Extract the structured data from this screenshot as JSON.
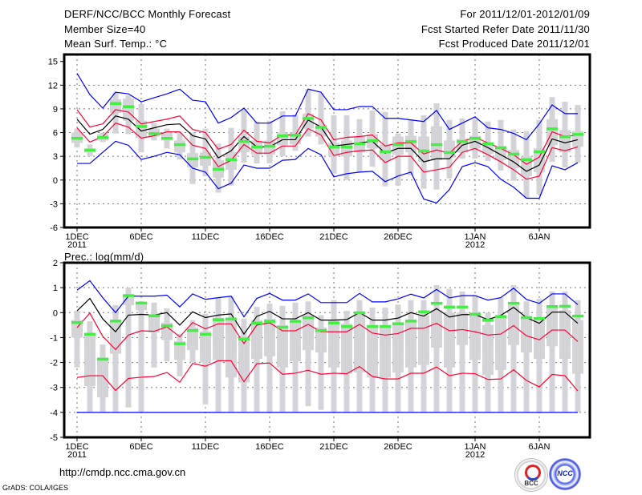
{
  "header": {
    "title": "DERF/NCC/BCC Monthly Forecast",
    "member_size": "Member Size=40",
    "variable": "Mean Surf. Temp.: °C",
    "period": "For 2011/12/01-2012/01/09",
    "started": "Fcst Started Refer Date 2011/11/30",
    "produced": "Fcst Produced Date 2011/12/01"
  },
  "footer": {
    "url": "http://cmdp.ncc.cma.gov.cn",
    "credit": "GrADS: COLA/IGES",
    "logos": [
      "BCC",
      "NCC"
    ]
  },
  "colors": {
    "envelope": "#0000ff",
    "spread": "#ff0033",
    "mean": "#000000",
    "obs": "#44ee44",
    "box": "#d4d4d8"
  },
  "chart_data": [
    {
      "type": "line",
      "title": "Mean Surf. Temp.: °C",
      "days": 40,
      "ylim": [
        -6,
        15
      ],
      "yticks": [
        "15",
        "12",
        "9",
        "6",
        "3",
        "0",
        "-3",
        "-6"
      ],
      "ytick_values": [
        15,
        12,
        9,
        6,
        3,
        0,
        -3,
        -6
      ],
      "xticks": [
        {
          "day": 1,
          "label": "1DEC",
          "sub": "2011"
        },
        {
          "day": 6,
          "label": "6DEC"
        },
        {
          "day": 11,
          "label": "11DEC"
        },
        {
          "day": 16,
          "label": "16DEC"
        },
        {
          "day": 21,
          "label": "21DEC"
        },
        {
          "day": 26,
          "label": "26DEC"
        },
        {
          "day": 32,
          "label": "1JAN",
          "sub": "2012"
        },
        {
          "day": 37,
          "label": "6JAN"
        }
      ],
      "series": [
        {
          "name": "upper-envelope",
          "color": "#0000ff",
          "values": [
            13.5,
            10.8,
            9.1,
            11.1,
            10.9,
            9.9,
            10.4,
            10.9,
            11.5,
            10.1,
            9.9,
            7.2,
            7.9,
            9.1,
            7.2,
            7.2,
            8.1,
            8.1,
            11.5,
            11.1,
            8.9,
            8.9,
            9.3,
            9.3,
            7.8,
            7.8,
            7.6,
            7.4,
            8.8,
            6.4,
            7.2,
            8.0,
            6.6,
            6.4,
            5.9,
            5.1,
            7.1,
            9.5,
            8.4,
            8.4
          ]
        },
        {
          "name": "upper-spread",
          "color": "#ff0033",
          "values": [
            8.9,
            6.7,
            7.1,
            8.9,
            8.6,
            7.1,
            7.4,
            7.7,
            8.1,
            6.4,
            6.0,
            3.9,
            4.5,
            6.3,
            4.9,
            4.7,
            5.7,
            5.7,
            8.4,
            7.6,
            5.1,
            5.4,
            5.5,
            5.7,
            4.3,
            4.7,
            4.7,
            3.3,
            3.8,
            3.4,
            4.9,
            5.4,
            4.7,
            4.0,
            3.2,
            2.0,
            2.9,
            6.1,
            5.5,
            5.7
          ]
        },
        {
          "name": "ensemble-mean",
          "color": "#000000",
          "values": [
            7.7,
            5.8,
            6.4,
            8.1,
            7.7,
            6.2,
            6.6,
            7.0,
            7.1,
            5.6,
            5.2,
            2.8,
            3.7,
            5.5,
            4.2,
            4.2,
            5.1,
            5.1,
            7.6,
            6.7,
            4.3,
            4.5,
            4.7,
            4.9,
            3.4,
            4.0,
            4.0,
            2.3,
            2.7,
            2.7,
            4.4,
            4.9,
            4.1,
            3.2,
            2.3,
            1.1,
            1.9,
            5.2,
            4.7,
            5.1
          ]
        },
        {
          "name": "lower-spread",
          "color": "#ff0033",
          "values": [
            6.6,
            4.8,
            5.5,
            7.2,
            6.7,
            5.3,
            5.6,
            6.1,
            6.1,
            4.4,
            4.0,
            1.7,
            2.5,
            4.5,
            3.4,
            3.4,
            4.3,
            4.3,
            6.5,
            5.7,
            3.1,
            3.5,
            3.7,
            3.8,
            2.2,
            3.0,
            3.0,
            1.0,
            1.3,
            1.6,
            3.5,
            4.0,
            3.2,
            2.3,
            1.3,
            0.1,
            0.5,
            4.1,
            3.7,
            4.2
          ]
        },
        {
          "name": "lower-envelope",
          "color": "#0000ff",
          "values": [
            2.1,
            2.1,
            3.5,
            4.9,
            4.4,
            2.6,
            3.0,
            3.5,
            3.2,
            1.5,
            1.0,
            -1.1,
            -0.4,
            1.9,
            1.5,
            1.5,
            2.5,
            2.6,
            4.0,
            3.2,
            0.4,
            0.8,
            1.0,
            1.1,
            -0.2,
            0.5,
            1.0,
            -2.4,
            -2.9,
            -1.2,
            1.7,
            2.2,
            1.7,
            0.1,
            -0.9,
            -2.3,
            -2.3,
            1.8,
            1.3,
            2.2
          ]
        }
      ],
      "observed": [
        5.3,
        3.8,
        5.4,
        9.7,
        9.3,
        6.8,
        5.9,
        5.3,
        4.5,
        2.7,
        2.9,
        1.4,
        2.6,
        4.9,
        4.2,
        4.3,
        5.6,
        5.7,
        7.8,
        6.7,
        4.2,
        4.2,
        4.6,
        5.0,
        3.6,
        4.5,
        4.9,
        3.7,
        4.5,
        3.5,
        4.9,
        5.3,
        4.6,
        4.1,
        3.3,
        2.6,
        3.6,
        6.5,
        5.5,
        5.8
      ],
      "boxes": {
        "max": [
          6.5,
          4.5,
          6.0,
          11.1,
          10.7,
          9.6,
          7.2,
          6.5,
          6.1,
          6.0,
          6.5,
          4.6,
          6.6,
          9.0,
          7.4,
          7.5,
          8.7,
          8.3,
          11.5,
          11.0,
          8.2,
          8.2,
          7.7,
          8.8,
          8.6,
          5.9,
          7.7,
          8.2,
          9.7,
          7.6,
          7.8,
          7.7,
          7.4,
          7.6,
          6.4,
          6.2,
          7.6,
          10.5,
          9.9,
          9.5
        ],
        "q3": [
          6.0,
          4.0,
          5.8,
          10.2,
          10.3,
          7.5,
          6.5,
          6.0,
          5.0,
          3.4,
          3.5,
          2.5,
          3.5,
          5.5,
          5.0,
          5.0,
          6.0,
          6.0,
          8.4,
          7.0,
          4.7,
          5.0,
          5.5,
          5.8,
          4.5,
          5.5,
          5.6,
          5.5,
          6.8,
          5.0,
          5.2,
          5.6,
          4.8,
          4.3,
          3.8,
          3.0,
          4.0,
          7.7,
          6.3,
          6.2
        ],
        "q1": [
          4.7,
          3.5,
          5.0,
          8.5,
          7.5,
          5.3,
          5.5,
          5.0,
          3.5,
          1.6,
          1.8,
          0.3,
          1.3,
          3.5,
          3.2,
          3.2,
          4.4,
          4.5,
          6.5,
          5.5,
          3.0,
          3.0,
          3.5,
          4.0,
          2.5,
          3.2,
          3.5,
          2.3,
          2.5,
          2.8,
          3.5,
          4.0,
          3.3,
          2.5,
          1.5,
          0.5,
          1.0,
          4.4,
          3.5,
          4.2
        ],
        "min": [
          4.1,
          3.0,
          4.8,
          5.9,
          5.8,
          3.5,
          5.0,
          4.0,
          2.6,
          -0.5,
          0.5,
          -1.6,
          -0.7,
          2.2,
          2.1,
          2.1,
          3.0,
          3.7,
          5.5,
          4.5,
          0.8,
          0.0,
          1.0,
          1.7,
          -0.8,
          -0.7,
          0.6,
          -1.1,
          -1.2,
          0.2,
          2.7,
          2.7,
          2.4,
          1.2,
          -0.1,
          -2.3,
          -1.8,
          2.3,
          1.6,
          2.2
        ]
      }
    },
    {
      "type": "line",
      "title": "Prec.: log(mm/d)",
      "days": 40,
      "ylim": [
        -5,
        2
      ],
      "yticks": [
        "2",
        "1",
        "0",
        "-1",
        "-2",
        "-3",
        "-4",
        "-5"
      ],
      "ytick_values": [
        2,
        1,
        0,
        -1,
        -2,
        -3,
        -4,
        -5
      ],
      "xticks": [
        {
          "day": 1,
          "label": "1DEC",
          "sub": "2011"
        },
        {
          "day": 6,
          "label": "6DEC"
        },
        {
          "day": 11,
          "label": "11DEC"
        },
        {
          "day": 16,
          "label": "16DEC"
        },
        {
          "day": 21,
          "label": "21DEC"
        },
        {
          "day": 26,
          "label": "26DEC"
        },
        {
          "day": 32,
          "label": "1JAN",
          "sub": "2012"
        },
        {
          "day": 37,
          "label": "6JAN"
        }
      ],
      "series": [
        {
          "name": "upper-envelope",
          "color": "#0000ff",
          "values": [
            0.9,
            1.28,
            0.6,
            0.0,
            0.66,
            0.66,
            0.66,
            0.7,
            0.23,
            0.75,
            0.53,
            0.6,
            0.66,
            -0.17,
            0.57,
            0.77,
            0.5,
            0.5,
            0.75,
            0.4,
            0.4,
            0.4,
            0.77,
            0.43,
            0.43,
            0.55,
            0.74,
            0.59,
            0.93,
            0.59,
            0.68,
            0.68,
            0.5,
            0.6,
            0.98,
            0.53,
            0.37,
            0.75,
            0.75,
            0.32
          ]
        },
        {
          "name": "ensemble-mean",
          "color": "#000000",
          "values": [
            0.07,
            0.57,
            -0.25,
            -0.77,
            -0.1,
            -0.07,
            -0.1,
            0.0,
            -0.5,
            0.03,
            -0.2,
            -0.1,
            -0.05,
            -0.86,
            -0.15,
            0.05,
            -0.25,
            -0.25,
            0.0,
            -0.3,
            -0.3,
            -0.28,
            0.0,
            -0.3,
            -0.3,
            -0.22,
            0.0,
            -0.14,
            0.16,
            -0.18,
            -0.08,
            -0.08,
            -0.28,
            -0.11,
            0.21,
            -0.2,
            -0.43,
            0.02,
            0.02,
            -0.43
          ]
        },
        {
          "name": "upper-spread",
          "color": "#ff0033",
          "values": [
            -0.6,
            -0.02,
            -0.95,
            -1.48,
            -0.9,
            -0.73,
            -0.75,
            -0.57,
            -0.97,
            -0.4,
            -0.65,
            -0.45,
            -0.45,
            -1.24,
            -0.5,
            -0.41,
            -0.73,
            -0.73,
            -0.47,
            -0.77,
            -0.77,
            -0.77,
            -0.47,
            -0.82,
            -0.9,
            -0.84,
            -0.63,
            -0.63,
            -0.43,
            -0.73,
            -0.68,
            -0.77,
            -0.9,
            -0.86,
            -0.52,
            -0.93,
            -1.09,
            -0.7,
            -0.7,
            -1.16
          ]
        },
        {
          "name": "lower-spread",
          "color": "#ff0033",
          "values": [
            -2.6,
            -2.53,
            -2.53,
            -3.12,
            -2.64,
            -2.59,
            -2.56,
            -2.4,
            -2.79,
            -2.04,
            -2.15,
            -1.93,
            -1.93,
            -2.77,
            -2.05,
            -2.02,
            -2.47,
            -2.43,
            -2.31,
            -2.47,
            -2.43,
            -2.45,
            -2.16,
            -2.56,
            -2.66,
            -2.66,
            -2.43,
            -2.43,
            -2.18,
            -2.53,
            -2.43,
            -2.45,
            -2.68,
            -2.66,
            -2.29,
            -2.72,
            -2.98,
            -2.48,
            -2.53,
            -3.14
          ]
        },
        {
          "name": "lower-envelope",
          "color": "#0000ff",
          "values": [
            -4,
            -4,
            -4,
            -4,
            -4,
            -4,
            -4,
            -4,
            -4,
            -4,
            -4,
            -4,
            -4,
            -4,
            -4,
            -4,
            -4,
            -4,
            -4,
            -4,
            -4,
            -4,
            -4,
            -4,
            -4,
            -4,
            -4,
            -4,
            -4,
            -4,
            -4,
            -4,
            -4,
            -4,
            -4,
            -4,
            -4,
            -4,
            -4,
            -4
          ]
        }
      ],
      "observed": [
        -0.39,
        -0.86,
        -1.86,
        -0.33,
        0.69,
        0.39,
        -0.12,
        -0.52,
        -1.24,
        -0.71,
        -0.86,
        -0.28,
        -0.25,
        -1.05,
        -0.41,
        -0.34,
        -0.58,
        -0.34,
        -0.2,
        -0.71,
        -0.41,
        -0.55,
        0.0,
        -0.55,
        -0.55,
        -0.44,
        -0.33,
        0.04,
        0.38,
        0.23,
        0.23,
        -0.06,
        -0.3,
        -0.15,
        0.38,
        -0.19,
        -0.23,
        0.25,
        0.26,
        -0.13
      ],
      "boxes": {
        "max": [
          0.07,
          -0.35,
          -1.28,
          0.3,
          1.0,
          0.45,
          0.4,
          0.17,
          -0.85,
          -0.3,
          -0.05,
          0.6,
          0.65,
          -0.25,
          0.23,
          0.36,
          0.27,
          0.4,
          0.45,
          -0.1,
          0.5,
          0.07,
          0.5,
          0.2,
          0.2,
          0.32,
          0.5,
          0.5,
          1.1,
          0.95,
          0.85,
          0.7,
          0.0,
          0.6,
          1.1,
          0.45,
          0.55,
          0.85,
          0.85,
          0.5
        ],
        "q3": [
          -0.3,
          -0.9,
          -1.8,
          -0.3,
          0.72,
          0.4,
          -0.1,
          -0.4,
          -1.15,
          -0.6,
          -0.75,
          -0.2,
          -0.2,
          -0.95,
          -0.3,
          -0.25,
          -0.5,
          -0.3,
          -0.1,
          -0.6,
          -0.3,
          -0.45,
          -0.1,
          -0.5,
          -0.5,
          -0.5,
          -0.3,
          -0.1,
          0.1,
          0.0,
          0.0,
          0.0,
          -0.5,
          -0.1,
          0.3,
          -0.2,
          -0.3,
          0.2,
          0.1,
          -0.3
        ],
        "q1": [
          -1.0,
          -2.95,
          -3.4,
          -1.65,
          0.3,
          0.1,
          -0.8,
          -1.1,
          -1.9,
          -1.5,
          -2.0,
          -1.9,
          -2.6,
          -2.8,
          -1.85,
          -1.75,
          -2.2,
          -1.95,
          -1.5,
          -1.6,
          -2.2,
          -2.45,
          -2.4,
          -2.6,
          -2.6,
          -2.4,
          -2.2,
          -2.1,
          -1.4,
          -2.2,
          -1.3,
          -1.9,
          -2.5,
          -2.3,
          -1.3,
          -1.6,
          -1.85,
          -1.35,
          -1.85,
          -2.45
        ],
        "min": [
          -2.2,
          -3.98,
          -3.98,
          -3.98,
          -3.8,
          -3.98,
          -2.2,
          -1.95,
          -2.55,
          -2.0,
          -3.68,
          -3.98,
          -3.98,
          -3.98,
          -3.98,
          -3.98,
          -3.98,
          -3.98,
          -3.75,
          -3.9,
          -3.98,
          -3.98,
          -3.98,
          -3.98,
          -3.98,
          -3.98,
          -3.98,
          -3.98,
          -3.98,
          -3.98,
          -3.98,
          -3.98,
          -3.98,
          -3.98,
          -3.98,
          -3.98,
          -3.98,
          -3.98,
          -3.98,
          -3.98
        ]
      }
    }
  ]
}
